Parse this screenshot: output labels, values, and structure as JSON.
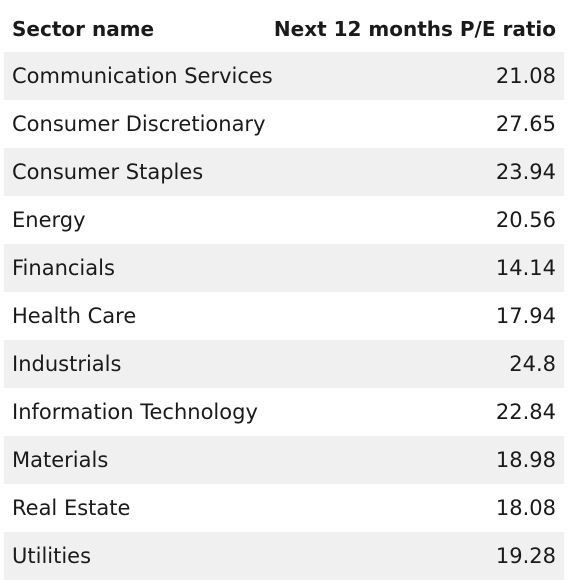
{
  "table": {
    "headers": {
      "sector": "Sector name",
      "pe": "Next 12 months P/E ratio"
    },
    "rows": [
      {
        "sector": "Communication Services",
        "pe": "21.08"
      },
      {
        "sector": "Consumer Discretionary",
        "pe": "27.65"
      },
      {
        "sector": "Consumer Staples",
        "pe": "23.94"
      },
      {
        "sector": "Energy",
        "pe": "20.56"
      },
      {
        "sector": "Financials",
        "pe": "14.14"
      },
      {
        "sector": "Health Care",
        "pe": "17.94"
      },
      {
        "sector": "Industrials",
        "pe": "24.8"
      },
      {
        "sector": "Information Technology",
        "pe": "22.84"
      },
      {
        "sector": "Materials",
        "pe": "18.98"
      },
      {
        "sector": "Real Estate",
        "pe": "18.08"
      },
      {
        "sector": "Utilities",
        "pe": "19.28"
      }
    ]
  },
  "colors": {
    "stripe": "#f0f0f0",
    "text": "#1a1a1a"
  }
}
